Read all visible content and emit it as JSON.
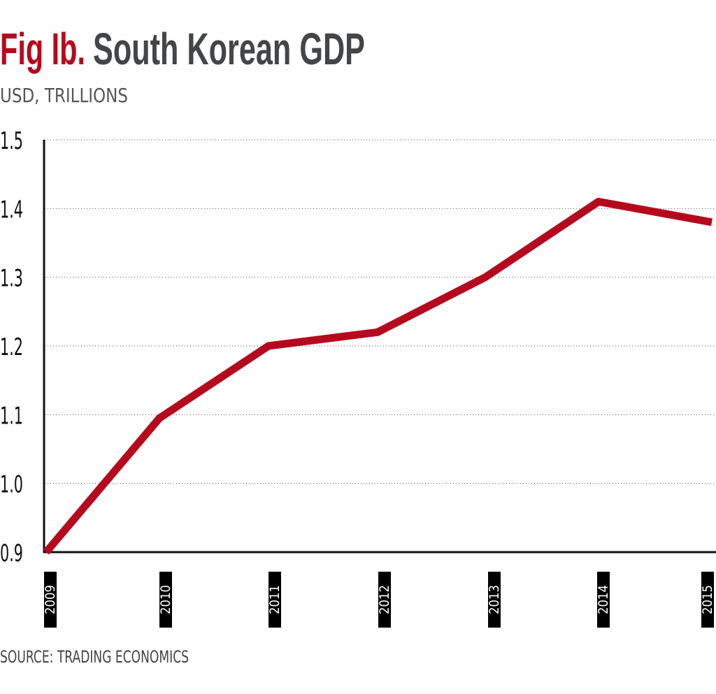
{
  "chart_data": {
    "type": "line",
    "title_prefix": "Fig Ib.",
    "title": "South Korean GDP",
    "subtitle": "USD, TRILLIONS",
    "xlabel": "",
    "ylabel": "",
    "categories": [
      "2009",
      "2010",
      "2011",
      "2012",
      "2013",
      "2014",
      "2015"
    ],
    "values": [
      0.9,
      1.095,
      1.2,
      1.22,
      1.3,
      1.41,
      1.38
    ],
    "ylim": [
      0.9,
      1.5
    ],
    "yticks": [
      "0.9",
      "1.0",
      "1.1",
      "1.2",
      "1.3",
      "1.4",
      "1.5"
    ],
    "grid": "horizontal dotted",
    "legend": "none",
    "source": "SOURCE: TRADING ECONOMICS",
    "colors": {
      "line": "#b50a1e",
      "title_prefix": "#b50a1e",
      "title": "#434547",
      "tick_box": "#000000"
    }
  }
}
